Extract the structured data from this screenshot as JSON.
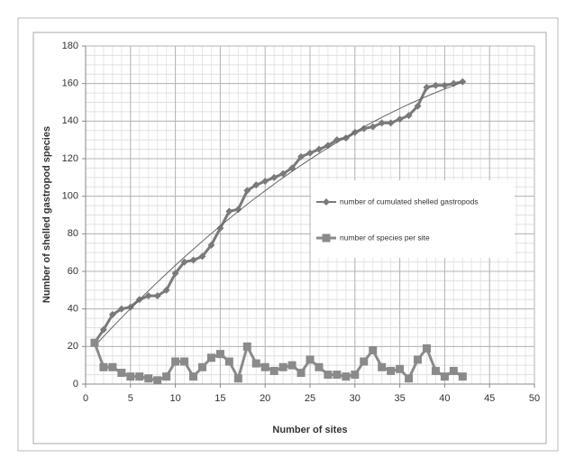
{
  "chart_data": {
    "type": "line",
    "xlabel": "Number of sites",
    "ylabel": "Number of shelled gastropod species",
    "xlim": [
      0,
      50
    ],
    "xticks": [
      0,
      5,
      10,
      15,
      20,
      25,
      30,
      35,
      40,
      45,
      50
    ],
    "ylim": [
      0,
      180
    ],
    "yticks": [
      0,
      20,
      40,
      60,
      80,
      100,
      120,
      140,
      160,
      180
    ],
    "grid": true,
    "minor_xstep": 1,
    "minor_ystep": 5,
    "legend": "right",
    "x": [
      1,
      2,
      3,
      4,
      5,
      6,
      7,
      8,
      9,
      10,
      11,
      12,
      13,
      14,
      15,
      16,
      17,
      18,
      19,
      20,
      21,
      22,
      23,
      24,
      25,
      26,
      27,
      28,
      29,
      30,
      31,
      32,
      33,
      34,
      35,
      36,
      37,
      38,
      39,
      40,
      41,
      42
    ],
    "series": [
      {
        "name": "number of cumulated shelled gastropods",
        "color": "#7a7a7a",
        "marker": "diamond",
        "trendline": true,
        "values": [
          22,
          29,
          37,
          40,
          41,
          45,
          47,
          47,
          50,
          59,
          65,
          66,
          68,
          74,
          83,
          92,
          93,
          103,
          106,
          108,
          110,
          112,
          115,
          121,
          123,
          125,
          127,
          130,
          131,
          134,
          136,
          137,
          139,
          139,
          141,
          143,
          148,
          158,
          159,
          159,
          160,
          161
        ]
      },
      {
        "name": "number of species per site",
        "color": "#8a8a8a",
        "marker": "square",
        "trendline": false,
        "values": [
          22,
          9,
          9,
          6,
          4,
          4,
          3,
          2,
          4,
          12,
          12,
          4,
          9,
          14,
          16,
          12,
          3,
          20,
          11,
          9,
          7,
          9,
          10,
          6,
          13,
          9,
          5,
          5,
          4,
          5,
          12,
          18,
          9,
          7,
          8,
          3,
          13,
          19,
          7,
          4,
          7,
          4
        ]
      }
    ]
  }
}
